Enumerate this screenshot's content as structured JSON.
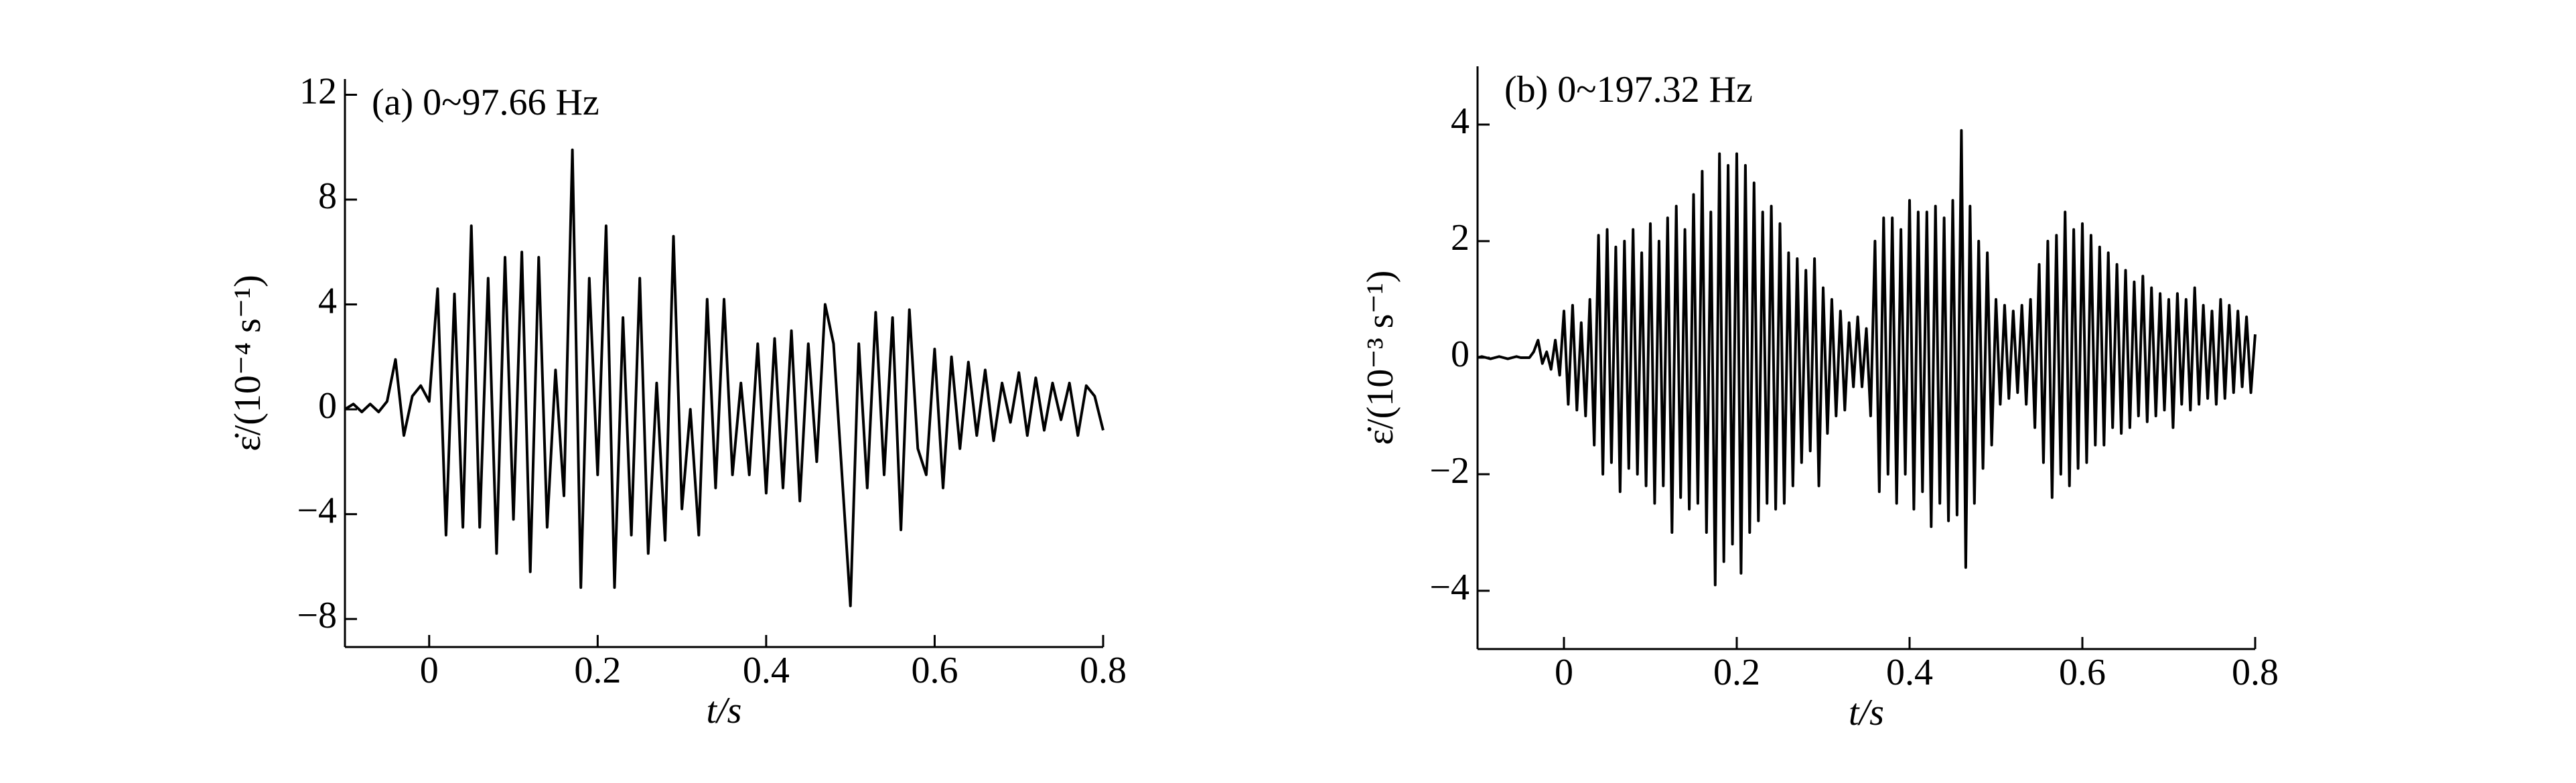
{
  "chart_data": [
    {
      "type": "line",
      "title": "(a) 0~97.66 Hz",
      "x_label": "t/s",
      "y_label": "ε̇/(10⁻⁴ s⁻¹)",
      "color": "#000000",
      "xlim": [
        -0.1,
        0.8
      ],
      "xticks": [
        0,
        0.2,
        0.4,
        0.6,
        0.8
      ],
      "ylim": [
        -9.07,
        12.6
      ],
      "yticks": [
        {
          "value": -8,
          "label": "−8"
        },
        {
          "value": -4,
          "label": "−4"
        },
        0,
        4,
        8,
        12
      ],
      "x": [
        -0.1,
        -0.09,
        -0.08,
        -0.07,
        -0.06,
        -0.05,
        -0.04,
        -0.03,
        -0.02,
        -0.01,
        0,
        0.01,
        0.02,
        0.03,
        0.04,
        0.05,
        0.06,
        0.07,
        0.08,
        0.09,
        0.1,
        0.11,
        0.12,
        0.13,
        0.14,
        0.15,
        0.16,
        0.17,
        0.18,
        0.19,
        0.2,
        0.21,
        0.22,
        0.23,
        0.24,
        0.25,
        0.26,
        0.27,
        0.28,
        0.29,
        0.3,
        0.31,
        0.32,
        0.33,
        0.34,
        0.35,
        0.36,
        0.37,
        0.38,
        0.39,
        0.4,
        0.41,
        0.42,
        0.43,
        0.44,
        0.45,
        0.46,
        0.47,
        0.48,
        0.49,
        0.5,
        0.51,
        0.52,
        0.53,
        0.54,
        0.55,
        0.56,
        0.57,
        0.58,
        0.59,
        0.6,
        0.61,
        0.62,
        0.63,
        0.64,
        0.65,
        0.66,
        0.67,
        0.68,
        0.69,
        0.7,
        0.71,
        0.72,
        0.73,
        0.74,
        0.75,
        0.76,
        0.77,
        0.78,
        0.79,
        0.8
      ],
      "values": [
        0,
        0.2,
        -0.1,
        0.2,
        -0.1,
        0.3,
        1.9,
        -1.0,
        0.5,
        0.9,
        0.3,
        4.6,
        -4.8,
        4.4,
        -4.5,
        7.0,
        -4.5,
        5.0,
        -5.5,
        5.8,
        -4.2,
        6.0,
        -6.2,
        5.8,
        -4.5,
        1.5,
        -3.3,
        9.9,
        -6.8,
        5.0,
        -2.5,
        7.0,
        -6.8,
        3.5,
        -4.8,
        5.0,
        -5.5,
        1.0,
        -5.0,
        6.6,
        -3.8,
        0,
        -4.8,
        4.2,
        -3.0,
        4.2,
        -2.5,
        1.0,
        -2.5,
        2.5,
        -3.2,
        2.7,
        -3.0,
        3.0,
        -3.5,
        2.5,
        -2.0,
        4.0,
        2.5,
        -2.5,
        -7.5,
        2.5,
        -3.0,
        3.7,
        -2.5,
        3.5,
        -4.6,
        3.8,
        -1.5,
        -2.5,
        2.3,
        -3.0,
        2.0,
        -1.5,
        1.8,
        -1.0,
        1.5,
        -1.2,
        1.0,
        -0.5,
        1.4,
        -1.0,
        1.2,
        -0.8,
        1.0,
        -0.4,
        1.0,
        -1.0,
        0.9,
        0.5,
        -0.8
      ]
    },
    {
      "type": "line",
      "title": "(b) 0~197.32 Hz",
      "x_label": "t/s",
      "y_label": "ε̇/(10⁻³ s⁻¹)",
      "color": "#000000",
      "xlim": [
        -0.1,
        0.8
      ],
      "xticks": [
        0,
        0.2,
        0.4,
        0.6,
        0.8
      ],
      "ylim": [
        -5,
        5
      ],
      "yticks": [
        {
          "value": -4,
          "label": "−4"
        },
        {
          "value": -2,
          "label": "−2"
        },
        0,
        2,
        4
      ],
      "x": [
        -0.1,
        -0.095,
        -0.09,
        -0.085,
        -0.08,
        -0.075,
        -0.07,
        -0.065,
        -0.06,
        -0.055,
        -0.05,
        -0.045,
        -0.04,
        -0.035,
        -0.03,
        -0.025,
        -0.02,
        -0.015,
        -0.01,
        -0.005,
        0,
        0.005,
        0.01,
        0.015,
        0.02,
        0.025,
        0.03,
        0.035,
        0.04,
        0.045,
        0.05,
        0.055,
        0.06,
        0.065,
        0.07,
        0.075,
        0.08,
        0.085,
        0.09,
        0.095,
        0.1,
        0.105,
        0.11,
        0.115,
        0.12,
        0.125,
        0.13,
        0.135,
        0.14,
        0.145,
        0.15,
        0.155,
        0.16,
        0.165,
        0.17,
        0.175,
        0.18,
        0.185,
        0.19,
        0.195,
        0.2,
        0.205,
        0.21,
        0.215,
        0.22,
        0.225,
        0.23,
        0.235,
        0.24,
        0.245,
        0.25,
        0.255,
        0.26,
        0.265,
        0.27,
        0.275,
        0.28,
        0.285,
        0.29,
        0.295,
        0.3,
        0.305,
        0.31,
        0.315,
        0.32,
        0.325,
        0.33,
        0.335,
        0.34,
        0.345,
        0.35,
        0.355,
        0.36,
        0.365,
        0.37,
        0.375,
        0.38,
        0.385,
        0.39,
        0.395,
        0.4,
        0.405,
        0.41,
        0.415,
        0.42,
        0.425,
        0.43,
        0.435,
        0.44,
        0.445,
        0.45,
        0.455,
        0.46,
        0.465,
        0.47,
        0.475,
        0.48,
        0.485,
        0.49,
        0.495,
        0.5,
        0.505,
        0.51,
        0.515,
        0.52,
        0.525,
        0.53,
        0.535,
        0.54,
        0.545,
        0.55,
        0.555,
        0.56,
        0.565,
        0.57,
        0.575,
        0.58,
        0.585,
        0.59,
        0.595,
        0.6,
        0.605,
        0.61,
        0.615,
        0.62,
        0.625,
        0.63,
        0.635,
        0.64,
        0.645,
        0.65,
        0.655,
        0.66,
        0.665,
        0.67,
        0.675,
        0.68,
        0.685,
        0.69,
        0.695,
        0.7,
        0.705,
        0.71,
        0.715,
        0.72,
        0.725,
        0.73,
        0.735,
        0.74,
        0.745,
        0.75,
        0.755,
        0.76,
        0.765,
        0.77,
        0.775,
        0.78,
        0.785,
        0.79,
        0.795,
        0.8
      ],
      "values": [
        0,
        0.02,
        0,
        -0.02,
        0,
        0.02,
        0,
        -0.02,
        0,
        0.02,
        0,
        0,
        0,
        0.1,
        0.3,
        -0.1,
        0.1,
        -0.2,
        0.3,
        -0.3,
        0.8,
        -0.8,
        0.9,
        -0.9,
        0.6,
        -1.0,
        1.0,
        -1.5,
        2.1,
        -2.0,
        2.2,
        -1.8,
        1.9,
        -2.3,
        2.0,
        -1.9,
        2.2,
        -2.0,
        1.8,
        -2.2,
        2.3,
        -2.5,
        2.0,
        -2.2,
        2.4,
        -3.0,
        2.6,
        -2.4,
        2.2,
        -2.6,
        2.8,
        -2.5,
        3.2,
        -3.0,
        2.5,
        -3.9,
        3.5,
        -3.5,
        3.3,
        -3.2,
        3.5,
        -3.7,
        3.3,
        -3.0,
        3.0,
        -2.8,
        2.5,
        -2.5,
        2.6,
        -2.6,
        2.3,
        -2.5,
        1.8,
        -2.2,
        1.7,
        -1.8,
        1.5,
        -1.6,
        1.7,
        -2.2,
        1.2,
        -1.3,
        1.0,
        -1.0,
        0.8,
        -0.9,
        0.6,
        -0.5,
        0.7,
        -0.5,
        0.5,
        -1.0,
        2.0,
        -2.3,
        2.4,
        -2.0,
        2.4,
        -2.5,
        2.2,
        -2.0,
        2.7,
        -2.6,
        2.5,
        -2.3,
        2.5,
        -2.9,
        2.6,
        -2.5,
        2.4,
        -2.8,
        2.7,
        -2.7,
        3.9,
        -3.6,
        2.6,
        -2.5,
        2.0,
        -1.9,
        1.8,
        -1.5,
        1.0,
        -0.8,
        0.9,
        -0.7,
        0.8,
        -0.6,
        0.9,
        -0.8,
        1.0,
        -1.2,
        1.6,
        -1.8,
        2.0,
        -2.4,
        2.1,
        -2.0,
        2.5,
        -2.2,
        2.2,
        -1.9,
        2.3,
        -1.8,
        2.1,
        -1.5,
        1.9,
        -1.5,
        1.8,
        -1.2,
        1.6,
        -1.3,
        1.5,
        -1.2,
        1.3,
        -1.0,
        1.4,
        -1.1,
        1.2,
        -1.0,
        1.1,
        -0.9,
        1.0,
        -1.2,
        1.1,
        -0.8,
        1.0,
        -0.9,
        1.2,
        -0.8,
        0.9,
        -0.7,
        0.8,
        -0.8,
        1.0,
        -0.7,
        0.9,
        -0.6,
        0.8,
        -0.5,
        0.7,
        -0.6,
        0.4
      ]
    }
  ]
}
